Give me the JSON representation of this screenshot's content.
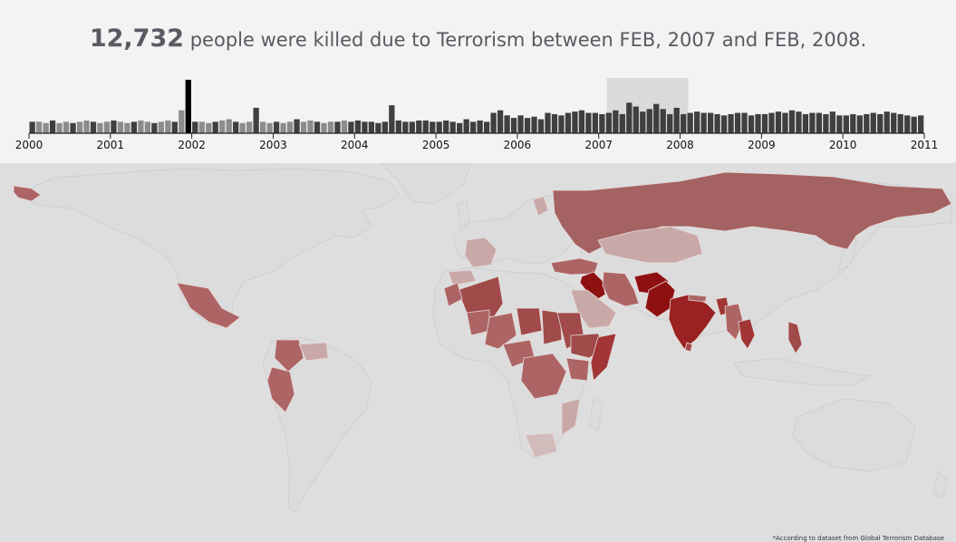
{
  "headline": {
    "count": "12,732",
    "text": " people were killed due to Terrorism between FEB, 2007 and FEB, 2008."
  },
  "timeline": {
    "years": [
      "2000",
      "2001",
      "2002",
      "2003",
      "2004",
      "2005",
      "2006",
      "2007",
      "2008",
      "2009",
      "2010",
      "2011"
    ],
    "selection": {
      "start": 2007.1,
      "end": 2008.1
    },
    "highlight_color": "#000000",
    "bar_color_light": "#8c8c8c",
    "bar_color_dark": "#3f3f3f",
    "monthly_values": [
      9,
      9,
      8,
      10,
      8,
      9,
      8,
      9,
      10,
      9,
      8,
      9,
      10,
      9,
      8,
      9,
      10,
      9,
      8,
      9,
      10,
      9,
      18,
      42,
      9,
      9,
      8,
      9,
      10,
      11,
      9,
      8,
      9,
      20,
      9,
      8,
      9,
      8,
      9,
      11,
      9,
      10,
      9,
      8,
      9,
      9,
      10,
      9,
      10,
      9,
      9,
      8,
      9,
      22,
      10,
      9,
      9,
      10,
      10,
      9,
      9,
      10,
      9,
      8,
      11,
      9,
      10,
      9,
      16,
      18,
      14,
      12,
      14,
      12,
      13,
      11,
      16,
      15,
      14,
      16,
      17,
      18,
      16,
      16,
      15,
      16,
      18,
      15,
      24,
      21,
      17,
      19,
      23,
      19,
      15,
      20,
      15,
      16,
      17,
      16,
      16,
      15,
      14,
      15,
      16,
      16,
      14,
      15,
      15,
      16,
      17,
      16,
      18,
      17,
      15,
      16,
      16,
      15,
      17,
      14,
      14,
      15,
      14,
      15,
      16,
      15,
      17,
      16,
      15,
      14,
      13,
      14
    ]
  },
  "map": {
    "ocean_color": "#dedede",
    "land_color": "#dcdcdc",
    "border_color": "#cfcfcf",
    "intensity_colors": {
      "very_high": "#8e1010",
      "high": "#a23535",
      "medium_high": "#a04a4a",
      "medium": "#ad6464",
      "low": "#c9a8a8",
      "very_low": "#d2bbbb"
    },
    "featured_country": "Iraq"
  },
  "footnote": "*According to dataset from Global Terrorism Database"
}
